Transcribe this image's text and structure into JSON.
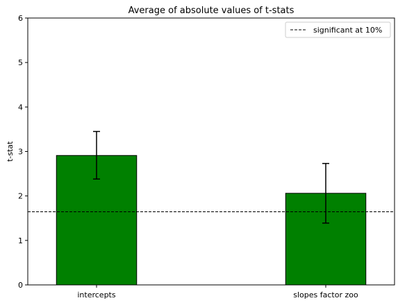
{
  "chart_data": {
    "type": "bar",
    "title": "Average of absolute values of t-stats",
    "xlabel": "",
    "ylabel": "t-stat",
    "categories": [
      "intercepts",
      "slopes factor zoo"
    ],
    "values": [
      2.91,
      2.06
    ],
    "error_low": [
      2.38,
      1.39
    ],
    "error_high": [
      3.45,
      2.73
    ],
    "ylim": [
      0,
      6
    ],
    "yticks": [
      "0",
      "1",
      "2",
      "3",
      "4",
      "5",
      "6"
    ],
    "reference_line": {
      "value": 1.645,
      "label": "significant at 10%",
      "style": "dashed",
      "color": "#000000"
    },
    "bar_color": "#008000",
    "edge_color": "#000000",
    "grid": false,
    "legend_position": "top-right"
  }
}
